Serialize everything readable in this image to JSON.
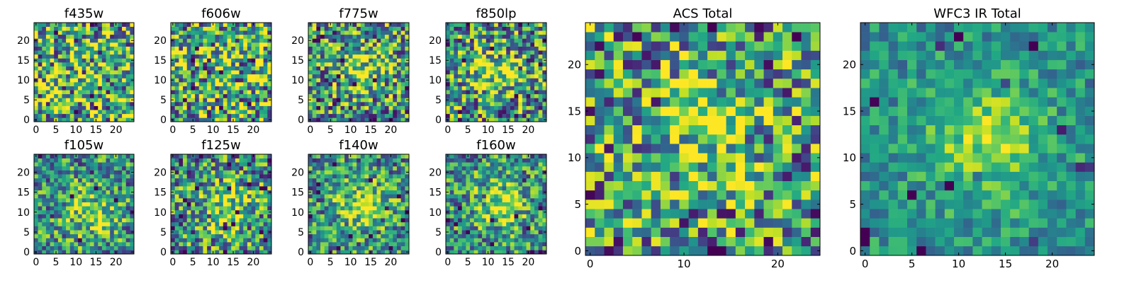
{
  "chart_data": [
    {
      "type": "heatmap",
      "title": "f435w",
      "colormap": "viridis",
      "grid_size": 25,
      "extent": [
        0,
        24
      ],
      "xticks": [
        0,
        5,
        10,
        15,
        20
      ],
      "yticks": [
        0,
        5,
        10,
        15,
        20
      ],
      "hotspot": null,
      "seed": 11,
      "noise": 0.55
    },
    {
      "type": "heatmap",
      "title": "f606w",
      "colormap": "viridis",
      "grid_size": 25,
      "extent": [
        0,
        24
      ],
      "xticks": [
        0,
        5,
        10,
        15,
        20
      ],
      "yticks": [
        0,
        5,
        10,
        15,
        20
      ],
      "hotspot": null,
      "seed": 23,
      "noise": 0.55
    },
    {
      "type": "heatmap",
      "title": "f775w",
      "colormap": "viridis",
      "grid_size": 25,
      "extent": [
        0,
        24
      ],
      "xticks": [
        0,
        5,
        10,
        15,
        20
      ],
      "yticks": [
        0,
        5,
        10,
        15,
        20
      ],
      "hotspot": [
        13,
        13
      ],
      "seed": 37,
      "noise": 0.5
    },
    {
      "type": "heatmap",
      "title": "f850lp",
      "colormap": "viridis",
      "grid_size": 25,
      "extent": [
        0,
        24
      ],
      "xticks": [
        0,
        5,
        10,
        15,
        20
      ],
      "yticks": [
        0,
        5,
        10,
        15,
        20
      ],
      "hotspot": [
        12,
        12
      ],
      "seed": 41,
      "noise": 0.5
    },
    {
      "type": "heatmap",
      "title": "f105w",
      "colormap": "viridis",
      "grid_size": 25,
      "extent": [
        0,
        24
      ],
      "xticks": [
        0,
        5,
        10,
        15,
        20
      ],
      "yticks": [
        0,
        5,
        10,
        15,
        20
      ],
      "hotspot": [
        14,
        10
      ],
      "seed": 53,
      "noise": 0.4
    },
    {
      "type": "heatmap",
      "title": "f125w",
      "colormap": "viridis",
      "grid_size": 25,
      "extent": [
        0,
        24
      ],
      "xticks": [
        0,
        5,
        10,
        15,
        20
      ],
      "yticks": [
        0,
        5,
        10,
        15,
        20
      ],
      "hotspot": [
        13,
        11
      ],
      "seed": 67,
      "noise": 0.45
    },
    {
      "type": "heatmap",
      "title": "f140w",
      "colormap": "viridis",
      "grid_size": 25,
      "extent": [
        0,
        24
      ],
      "xticks": [
        0,
        5,
        10,
        15,
        20
      ],
      "yticks": [
        0,
        5,
        10,
        15,
        20
      ],
      "hotspot": [
        13,
        12
      ],
      "seed": 71,
      "noise": 0.4
    },
    {
      "type": "heatmap",
      "title": "f160w",
      "colormap": "viridis",
      "grid_size": 25,
      "extent": [
        0,
        24
      ],
      "xticks": [
        0,
        5,
        10,
        15,
        20
      ],
      "yticks": [
        0,
        5,
        10,
        15,
        20
      ],
      "hotspot": [
        13,
        12
      ],
      "seed": 83,
      "noise": 0.4
    },
    {
      "type": "heatmap",
      "title": "ACS Total",
      "colormap": "viridis",
      "grid_size": 25,
      "extent": [
        0,
        24
      ],
      "xticks": [
        0,
        10,
        20
      ],
      "yticks": [
        0,
        5,
        10,
        15,
        20
      ],
      "hotspot": [
        12,
        13
      ],
      "seed": 97,
      "noise": 0.5
    },
    {
      "type": "heatmap",
      "title": "WFC3 IR Total",
      "colormap": "viridis",
      "grid_size": 25,
      "extent": [
        0,
        24
      ],
      "xticks": [
        0,
        5,
        10,
        15,
        20
      ],
      "yticks": [
        0,
        5,
        10,
        15,
        20
      ],
      "hotspot": [
        13,
        12
      ],
      "seed": 101,
      "noise": 0.22
    }
  ]
}
